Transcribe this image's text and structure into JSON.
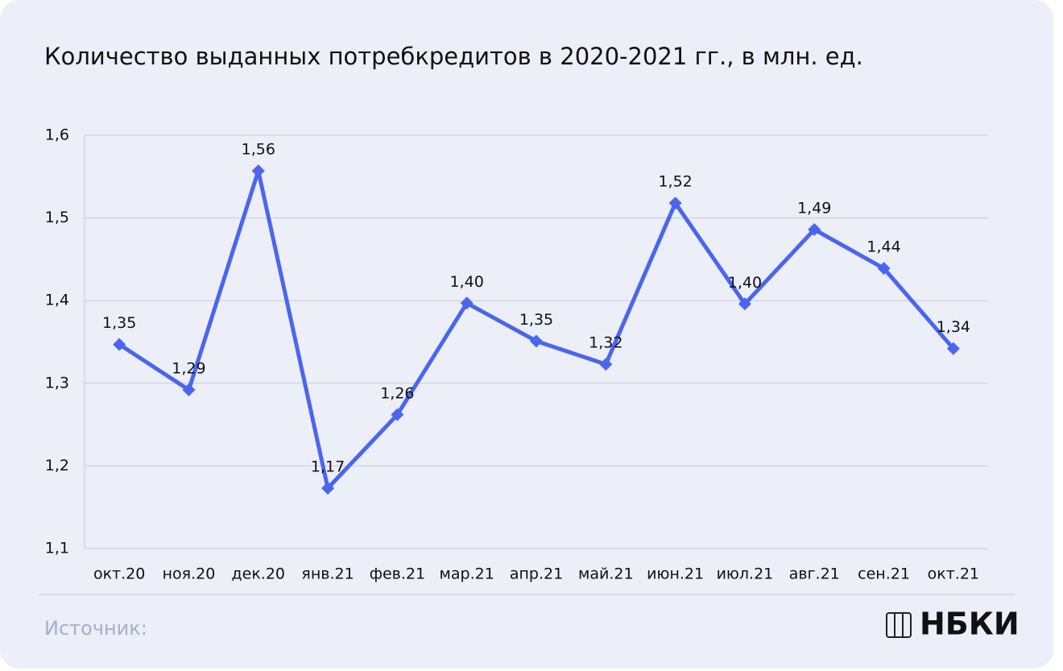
{
  "chart_data": {
    "type": "line",
    "title": "Количество выданных потребкредитов в 2020-2021 гг., в млн. ед.",
    "categories": [
      "окт.20",
      "ноя.20",
      "дек.20",
      "янв.21",
      "фев.21",
      "мар.21",
      "апр.21",
      "май.21",
      "июн.21",
      "июл.21",
      "авг.21",
      "сен.21",
      "окт.21"
    ],
    "series": [
      {
        "color": "#4a66ee",
        "values": [
          1.347,
          1.292,
          1.557,
          1.173,
          1.262,
          1.397,
          1.351,
          1.323,
          1.518,
          1.396,
          1.486,
          1.439,
          1.342
        ],
        "value_labels": [
          "1,35",
          "1,29",
          "1,56",
          "1,17",
          "1,26",
          "1,40",
          "1,35",
          "1,32",
          "1,52",
          "1,40",
          "1,49",
          "1,44",
          "1,34"
        ]
      }
    ],
    "ylim": [
      1.1,
      1.6
    ],
    "yticks": [
      {
        "value": 1.1,
        "label": "1,1"
      },
      {
        "value": 1.2,
        "label": "1,2"
      },
      {
        "value": 1.3,
        "label": "1,3"
      },
      {
        "value": 1.4,
        "label": "1,4"
      },
      {
        "value": 1.5,
        "label": "1,5"
      },
      {
        "value": 1.6,
        "label": "1,6"
      }
    ],
    "grid": true
  },
  "footer": {
    "source": "Источник:",
    "logo": "НБКИ"
  }
}
